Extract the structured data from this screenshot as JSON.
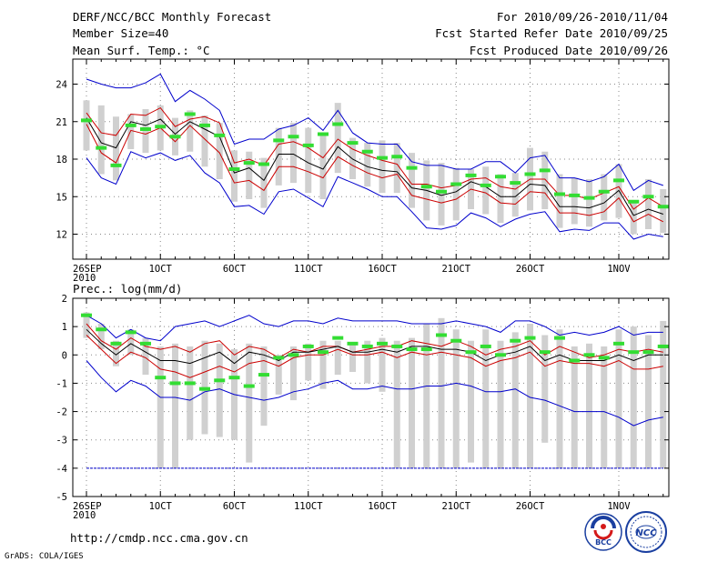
{
  "header": {
    "title": "DERF/NCC/BCC Monthly Forecast",
    "member_size": "Member Size=40",
    "period": "For 2010/09/26-2010/11/04",
    "fcst_started": "Fcst Started Refer Date 2010/09/25",
    "fcst_produced": "Fcst Produced Date 2010/09/26"
  },
  "footer": {
    "url": "http://cmdp.ncc.cma.gov.cn",
    "credit": "GrADS: COLA/IGES",
    "logo_bcc": "BCC",
    "logo_ncc": "NCC"
  },
  "colors": {
    "max": "#0000cc",
    "spread": "#cc0000",
    "mean": "#000000",
    "obs": "#33dd33",
    "box": "#d0d0d0",
    "grid": "#888888"
  },
  "chart_data": [
    {
      "type": "box",
      "ylabel": "Mean Surf. Temp.: °C",
      "ylim": [
        10,
        26
      ],
      "ytick_labels": [
        "12",
        "15",
        "18",
        "21",
        "24"
      ],
      "yticks": [
        12,
        15,
        18,
        21,
        24
      ],
      "xtick_labels": [
        "26SEP",
        "1OCT",
        "6OCT",
        "11OCT",
        "16OCT",
        "21OCT",
        "26OCT",
        "1NOV"
      ],
      "xticks": [
        0,
        5,
        10,
        15,
        20,
        25,
        30,
        36
      ],
      "year_label": "2010",
      "series": [
        {
          "name": "max",
          "values": [
            24.4,
            24.0,
            23.7,
            23.7,
            24.1,
            24.8,
            22.6,
            23.5,
            22.8,
            21.9,
            19.2,
            19.6,
            19.6,
            20.4,
            20.7,
            21.3,
            20.3,
            21.9,
            20.1,
            19.3,
            19.2,
            19.2,
            17.8,
            17.5,
            17.5,
            17.2,
            17.2,
            17.8,
            17.8,
            16.9,
            18.1,
            18.3,
            16.5,
            16.5,
            16.2,
            16.6,
            17.6,
            15.5,
            16.3,
            15.9
          ]
        },
        {
          "name": "upper",
          "values": [
            21.7,
            20.1,
            19.9,
            21.6,
            21.5,
            22.1,
            20.6,
            21.2,
            21.4,
            20.9,
            17.7,
            18.0,
            17.5,
            19.2,
            19.4,
            18.9,
            18.1,
            19.6,
            18.8,
            18.3,
            17.9,
            17.6,
            16.0,
            16.0,
            15.7,
            15.9,
            16.4,
            16.5,
            15.8,
            15.6,
            16.4,
            16.4,
            15.1,
            15.1,
            14.8,
            15.3,
            15.8,
            14.0,
            14.9,
            14.2
          ]
        },
        {
          "name": "mean",
          "values": [
            21.3,
            19.3,
            18.9,
            21.0,
            20.7,
            21.2,
            20.0,
            21.0,
            20.4,
            19.8,
            16.9,
            17.3,
            16.3,
            18.4,
            18.4,
            17.7,
            17.2,
            19.0,
            18.0,
            17.4,
            17.1,
            17.0,
            15.7,
            15.5,
            15.1,
            15.4,
            16.2,
            15.8,
            15.0,
            15.0,
            16.0,
            15.9,
            14.2,
            14.2,
            14.1,
            14.5,
            15.5,
            13.5,
            14.0,
            13.6
          ]
        },
        {
          "name": "lower",
          "values": [
            20.8,
            18.5,
            17.7,
            20.3,
            20.0,
            20.5,
            19.4,
            20.7,
            19.6,
            18.5,
            16.1,
            16.3,
            15.5,
            17.4,
            17.4,
            17.0,
            16.5,
            18.2,
            17.5,
            16.9,
            16.5,
            16.8,
            15.1,
            14.8,
            14.5,
            14.8,
            15.6,
            15.3,
            14.5,
            14.4,
            15.4,
            15.3,
            13.7,
            13.7,
            13.5,
            13.8,
            14.9,
            13.0,
            13.6,
            13.0
          ]
        },
        {
          "name": "min",
          "values": [
            18.1,
            16.5,
            16.0,
            18.6,
            18.1,
            18.5,
            17.9,
            18.3,
            16.9,
            16.1,
            14.2,
            14.3,
            13.6,
            15.4,
            15.6,
            14.9,
            14.2,
            16.6,
            16.1,
            15.6,
            15.0,
            15.0,
            13.8,
            12.5,
            12.4,
            12.7,
            13.7,
            13.3,
            12.6,
            13.2,
            13.6,
            13.8,
            12.2,
            12.4,
            12.3,
            12.9,
            12.9,
            11.6,
            12.0,
            11.8
          ]
        }
      ],
      "obs": [
        21.1,
        18.9,
        17.5,
        20.7,
        20.4,
        20.6,
        19.8,
        21.6,
        20.7,
        19.9,
        17.2,
        17.7,
        17.6,
        19.5,
        19.8,
        19.1,
        20.0,
        20.8,
        19.3,
        18.6,
        18.1,
        18.2,
        17.3,
        15.8,
        15.4,
        16.0,
        16.7,
        15.9,
        16.6,
        16.1,
        16.8,
        17.1,
        15.2,
        15.1,
        14.9,
        15.4,
        16.3,
        14.6,
        15.0,
        14.2
      ],
      "box_hi": [
        22.7,
        22.3,
        21.4,
        21.6,
        22.0,
        22.3,
        21.3,
        21.9,
        21.5,
        20.9,
        18.7,
        18.6,
        18.1,
        20.5,
        20.9,
        20.5,
        20.0,
        22.5,
        19.7,
        19.3,
        19.5,
        19.3,
        18.5,
        17.9,
        17.7,
        17.3,
        17.2,
        17.4,
        16.8,
        16.9,
        18.9,
        18.6,
        16.8,
        16.5,
        16.4,
        16.8,
        17.6,
        14.6,
        16.4,
        15.6
      ],
      "box_lo": [
        18.7,
        16.8,
        16.3,
        18.8,
        18.5,
        18.7,
        18.3,
        18.6,
        17.4,
        16.4,
        14.6,
        14.8,
        14.1,
        15.9,
        16.1,
        15.3,
        14.8,
        16.9,
        16.4,
        15.8,
        15.3,
        15.3,
        14.1,
        13.1,
        12.7,
        13.1,
        14.0,
        13.6,
        12.9,
        13.4,
        13.9,
        14.0,
        12.5,
        12.8,
        12.6,
        13.1,
        13.3,
        12.0,
        12.4,
        12.1
      ]
    },
    {
      "type": "box",
      "ylabel": "Prec.: log(mm/d)",
      "ylim": [
        -5,
        2
      ],
      "ytick_labels": [
        "-5",
        "-4",
        "-3",
        "-2",
        "-1",
        "0",
        "1",
        "2"
      ],
      "yticks": [
        -5,
        -4,
        -3,
        -2,
        -1,
        0,
        1,
        2
      ],
      "xtick_labels": [
        "26SEP",
        "1OCT",
        "6OCT",
        "11OCT",
        "16OCT",
        "21OCT",
        "26OCT",
        "1NOV"
      ],
      "xticks": [
        0,
        5,
        10,
        15,
        20,
        25,
        30,
        36
      ],
      "year_label": "2010",
      "baseline": -4,
      "series": [
        {
          "name": "max",
          "values": [
            1.4,
            1.1,
            0.6,
            0.9,
            0.6,
            0.5,
            1.0,
            1.1,
            1.2,
            1.0,
            1.2,
            1.4,
            1.1,
            1.0,
            1.2,
            1.2,
            1.1,
            1.3,
            1.2,
            1.2,
            1.2,
            1.2,
            1.1,
            1.1,
            1.1,
            1.2,
            1.1,
            1.0,
            0.8,
            1.2,
            1.2,
            1.0,
            0.7,
            0.8,
            0.7,
            0.8,
            1.0,
            0.7,
            0.8,
            0.8
          ]
        },
        {
          "name": "upper",
          "values": [
            1.1,
            0.5,
            0.2,
            0.6,
            0.3,
            0.2,
            0.3,
            0.1,
            0.4,
            0.5,
            0.0,
            0.3,
            0.2,
            -0.1,
            0.2,
            0.1,
            0.3,
            0.3,
            0.1,
            0.2,
            0.3,
            0.3,
            0.5,
            0.4,
            0.3,
            0.5,
            0.3,
            0.0,
            0.2,
            0.3,
            0.5,
            0.0,
            0.3,
            0.1,
            -0.1,
            0.0,
            0.2,
            0.1,
            0.2,
            0.1
          ]
        },
        {
          "name": "mean",
          "values": [
            0.9,
            0.4,
            0.0,
            0.4,
            0.1,
            -0.2,
            -0.2,
            -0.3,
            -0.1,
            0.1,
            -0.3,
            0.1,
            0.0,
            -0.2,
            0.1,
            0.1,
            0.2,
            0.3,
            0.1,
            0.1,
            0.2,
            0.1,
            0.3,
            0.3,
            0.2,
            0.2,
            0.1,
            -0.2,
            0.0,
            0.1,
            0.3,
            -0.2,
            0.0,
            -0.2,
            -0.2,
            -0.2,
            0.0,
            -0.2,
            0.0,
            0.0
          ]
        },
        {
          "name": "lower",
          "values": [
            0.7,
            0.2,
            -0.3,
            0.1,
            -0.1,
            -0.5,
            -0.6,
            -0.8,
            -0.6,
            -0.4,
            -0.6,
            -0.3,
            -0.2,
            -0.4,
            -0.1,
            0.0,
            0.0,
            0.2,
            0.0,
            0.0,
            0.1,
            -0.1,
            0.1,
            0.0,
            0.1,
            0.0,
            -0.1,
            -0.4,
            -0.2,
            -0.1,
            0.1,
            -0.4,
            -0.2,
            -0.3,
            -0.3,
            -0.4,
            -0.2,
            -0.5,
            -0.5,
            -0.4
          ]
        },
        {
          "name": "min",
          "values": [
            -0.2,
            -0.8,
            -1.3,
            -0.9,
            -1.1,
            -1.5,
            -1.5,
            -1.6,
            -1.3,
            -1.2,
            -1.4,
            -1.5,
            -1.6,
            -1.5,
            -1.3,
            -1.2,
            -1.0,
            -0.9,
            -1.2,
            -1.2,
            -1.1,
            -1.2,
            -1.2,
            -1.1,
            -1.1,
            -1.0,
            -1.1,
            -1.3,
            -1.3,
            -1.2,
            -1.5,
            -1.6,
            -1.8,
            -2.0,
            -2.0,
            -2.0,
            -2.2,
            -2.5,
            -2.3,
            -2.2
          ]
        }
      ],
      "obs": [
        1.4,
        0.9,
        0.4,
        0.8,
        0.4,
        -0.8,
        -1.0,
        -1.0,
        -1.2,
        -0.9,
        -0.8,
        -1.1,
        -0.7,
        -0.1,
        0.0,
        0.3,
        0.1,
        0.6,
        0.4,
        0.3,
        0.4,
        0.3,
        0.2,
        0.2,
        0.7,
        0.5,
        0.1,
        0.3,
        0.0,
        0.5,
        0.6,
        0.1,
        0.6,
        -0.2,
        0.0,
        -0.1,
        0.4,
        0.1,
        0.1,
        0.3
      ],
      "box_hi": [
        1.5,
        1.1,
        0.5,
        0.9,
        0.6,
        0.3,
        0.4,
        0.3,
        0.5,
        0.4,
        0.2,
        0.4,
        0.3,
        0.0,
        0.3,
        0.4,
        0.5,
        0.5,
        0.4,
        0.5,
        0.6,
        0.5,
        0.6,
        1.1,
        1.3,
        0.9,
        0.5,
        0.9,
        0.5,
        0.8,
        1.1,
        0.7,
        0.9,
        0.3,
        0.4,
        0.3,
        0.9,
        1.0,
        0.7,
        1.2
      ],
      "box_lo": [
        0.6,
        0.2,
        -0.4,
        0.0,
        -0.7,
        -4.0,
        -4.0,
        -3.0,
        -2.8,
        -2.9,
        -3.0,
        -3.8,
        -2.5,
        -1.4,
        -1.6,
        -0.9,
        -1.2,
        -0.7,
        -0.6,
        -1.0,
        -1.3,
        -4.0,
        -4.0,
        -4.0,
        -4.0,
        -4.0,
        -3.8,
        -4.0,
        -4.0,
        -4.0,
        -4.0,
        -3.1,
        -4.0,
        -4.0,
        -4.0,
        -4.0,
        -4.0,
        -4.0,
        -4.0,
        -4.0
      ]
    }
  ]
}
